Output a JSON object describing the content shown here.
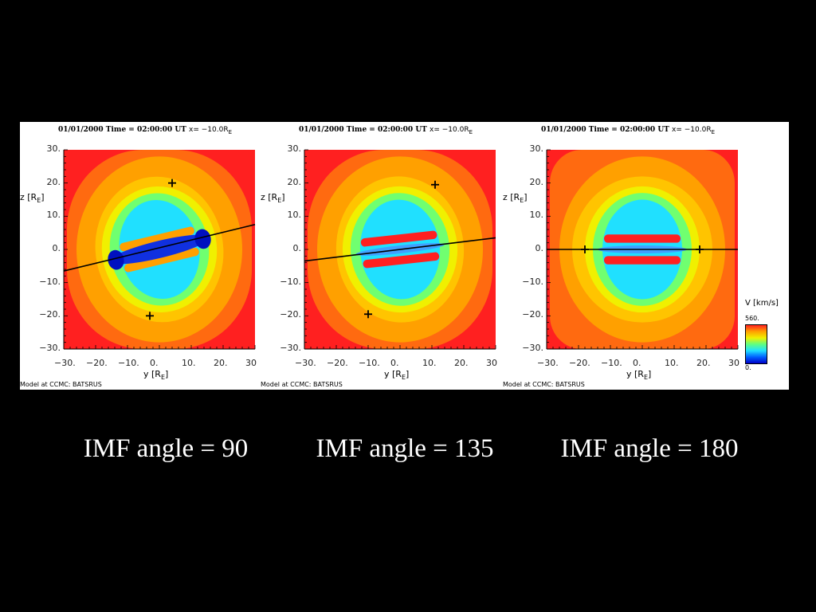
{
  "chart_data": [
    {
      "type": "heatmap",
      "title": "01/01/2000 Time = 02:00:00 UT",
      "slice": "x= −10.0R",
      "slice_sub": "E",
      "xlabel": "y [R",
      "ylabel": "z [R",
      "unit_sub": "E",
      "xlim": [
        -30,
        30
      ],
      "ylim": [
        -30,
        30
      ],
      "xticks": [
        "−30.",
        "−20.",
        "−10.",
        "0.",
        "10.",
        "20.",
        "30"
      ],
      "yticks": [
        "30.",
        "20.",
        "10.",
        "0.",
        "−10.",
        "−20.",
        "−30."
      ],
      "tilt_deg": 13,
      "line": {
        "x": [
          -30,
          30
        ],
        "y": [
          -6.5,
          7.5
        ]
      },
      "markers": [
        {
          "y": 4,
          "z": 20
        },
        {
          "y": -3,
          "z": -20
        }
      ],
      "red_bars": false,
      "credit": "Model at CCMC: BATSRUS",
      "caption": "IMF angle = 90"
    },
    {
      "type": "heatmap",
      "title": "01/01/2000 Time = 02:00:00 UT",
      "slice": "x= −10.0R",
      "slice_sub": "E",
      "xlabel": "y [R",
      "ylabel": "z [R",
      "unit_sub": "E",
      "xlim": [
        -30,
        30
      ],
      "ylim": [
        -30,
        30
      ],
      "xticks": [
        "−30.",
        "−20.",
        "−10.",
        "0.",
        "10.",
        "20.",
        "30"
      ],
      "yticks": [
        "30.",
        "20.",
        "10.",
        "0.",
        "−10.",
        "−20.",
        "−30."
      ],
      "tilt_deg": 6,
      "line": {
        "x": [
          -30,
          30
        ],
        "y": [
          -3.5,
          3.5
        ]
      },
      "markers": [
        {
          "y": 11,
          "z": 19.5
        },
        {
          "y": -10,
          "z": -19.5
        }
      ],
      "red_bars": true,
      "credit": "Model at CCMC: BATSRUS",
      "caption": "IMF angle = 135"
    },
    {
      "type": "heatmap",
      "title": "01/01/2000 Time = 02:00:00 UT",
      "slice": "x= −10.0R",
      "slice_sub": "E",
      "xlabel": "y [R",
      "ylabel": "z [R",
      "unit_sub": "E",
      "xlim": [
        -30,
        30
      ],
      "ylim": [
        -30,
        30
      ],
      "xticks": [
        "−30.",
        "−20.",
        "−10.",
        "0.",
        "10.",
        "20.",
        "30"
      ],
      "yticks": [
        "30.",
        "20.",
        "10.",
        "0.",
        "−10.",
        "−20.",
        "−30."
      ],
      "tilt_deg": 0,
      "line": {
        "x": [
          -30,
          30
        ],
        "y": [
          0,
          0
        ]
      },
      "markers": [
        {
          "y": -18,
          "z": 0
        },
        {
          "y": 18,
          "z": 0
        }
      ],
      "red_bars": true,
      "credit": "Model at CCMC: BATSRUS",
      "caption": "IMF angle = 180"
    }
  ],
  "colorbar": {
    "label": "V [km/s]",
    "label_var": "V",
    "label_num": "km",
    "label_den": "s",
    "max": "560.",
    "min": "0.",
    "colors": [
      "#0000c8",
      "#0060ff",
      "#20e0ff",
      "#60ff80",
      "#f0f000",
      "#ffa000",
      "#ff2020"
    ]
  }
}
